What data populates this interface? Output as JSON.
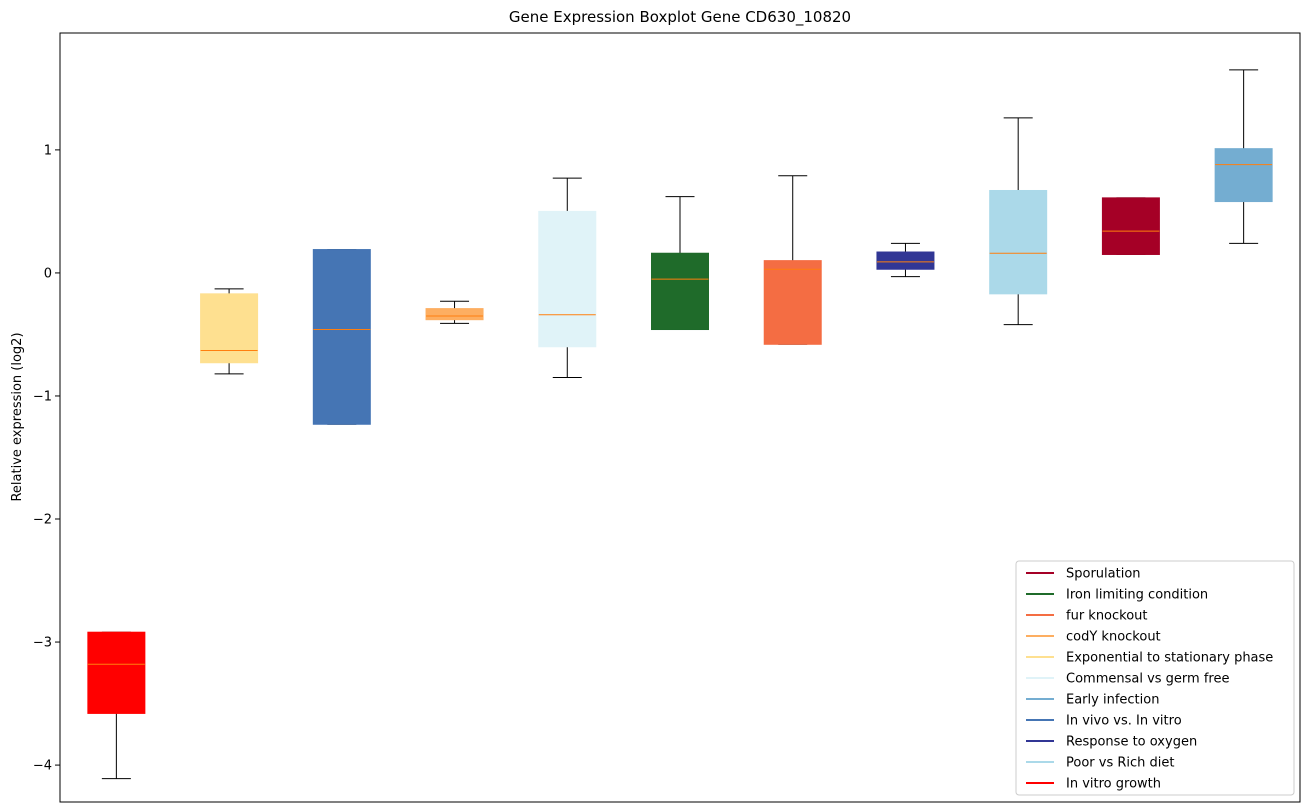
{
  "chart_data": {
    "type": "boxplot",
    "title": "Gene Expression Boxplot Gene CD630_10820",
    "xlabel": "",
    "ylabel": "Relative expression (log2)",
    "ylim": [
      -4.3,
      1.95
    ],
    "yticks": [
      -4,
      -3,
      -2,
      -1,
      0,
      1
    ],
    "ytick_labels": [
      "−4",
      "−3",
      "−2",
      "−1",
      "0",
      "1"
    ],
    "median_color": "#ff7f0e",
    "whisker_color": "#000000",
    "boxes": [
      {
        "name": "In vitro growth",
        "color": "#ff0000",
        "whislo": -4.11,
        "q1": -3.58,
        "med": -3.18,
        "q3": -2.92,
        "whishi": -2.92
      },
      {
        "name": "Exponential to stationary phase",
        "color": "#fee090",
        "whislo": -0.82,
        "q1": -0.73,
        "med": -0.63,
        "q3": -0.17,
        "whishi": -0.13
      },
      {
        "name": "In vivo vs. In vitro",
        "color": "#4575b4",
        "whislo": -1.23,
        "q1": -1.23,
        "med": -0.46,
        "q3": 0.19,
        "whishi": 0.19
      },
      {
        "name": "codY knockout",
        "color": "#fdae61",
        "whislo": -0.41,
        "q1": -0.38,
        "med": -0.35,
        "q3": -0.29,
        "whishi": -0.23
      },
      {
        "name": "Commensal vs germ free",
        "color": "#e0f3f8",
        "whislo": -0.85,
        "q1": -0.6,
        "med": -0.34,
        "q3": 0.5,
        "whishi": 0.77
      },
      {
        "name": "Iron limiting condition",
        "color": "#1f6b2a",
        "whislo": -0.46,
        "q1": -0.46,
        "med": -0.05,
        "q3": 0.16,
        "whishi": 0.62
      },
      {
        "name": "fur knockout",
        "color": "#f46d43",
        "whislo": -0.58,
        "q1": -0.58,
        "med": 0.03,
        "q3": 0.1,
        "whishi": 0.79
      },
      {
        "name": "Response to oxygen",
        "color": "#313695",
        "whislo": -0.03,
        "q1": 0.03,
        "med": 0.09,
        "q3": 0.17,
        "whishi": 0.24
      },
      {
        "name": "Poor vs Rich diet",
        "color": "#abd9e9",
        "whislo": -0.42,
        "q1": -0.17,
        "med": 0.16,
        "q3": 0.67,
        "whishi": 1.26
      },
      {
        "name": "Sporulation",
        "color": "#a50026",
        "whislo": 0.15,
        "q1": 0.15,
        "med": 0.34,
        "q3": 0.61,
        "whishi": 0.61
      },
      {
        "name": "Early infection",
        "color": "#74add1",
        "whislo": 0.24,
        "q1": 0.58,
        "med": 0.88,
        "q3": 1.01,
        "whishi": 1.65
      }
    ],
    "legend": {
      "placement": "lower-right",
      "entries": [
        {
          "label": "Sporulation",
          "color": "#a50026"
        },
        {
          "label": "Iron limiting condition",
          "color": "#1f6b2a"
        },
        {
          "label": "fur knockout",
          "color": "#f46d43"
        },
        {
          "label": "codY knockout",
          "color": "#fdae61"
        },
        {
          "label": "Exponential to stationary phase",
          "color": "#fee090"
        },
        {
          "label": "Commensal vs germ free",
          "color": "#e0f3f8"
        },
        {
          "label": "Early infection",
          "color": "#74add1"
        },
        {
          "label": "In vivo vs. In vitro",
          "color": "#4575b4"
        },
        {
          "label": "Response to oxygen",
          "color": "#313695"
        },
        {
          "label": "Poor vs Rich diet",
          "color": "#abd9e9"
        },
        {
          "label": "In vitro growth",
          "color": "#ff0000"
        }
      ]
    }
  }
}
